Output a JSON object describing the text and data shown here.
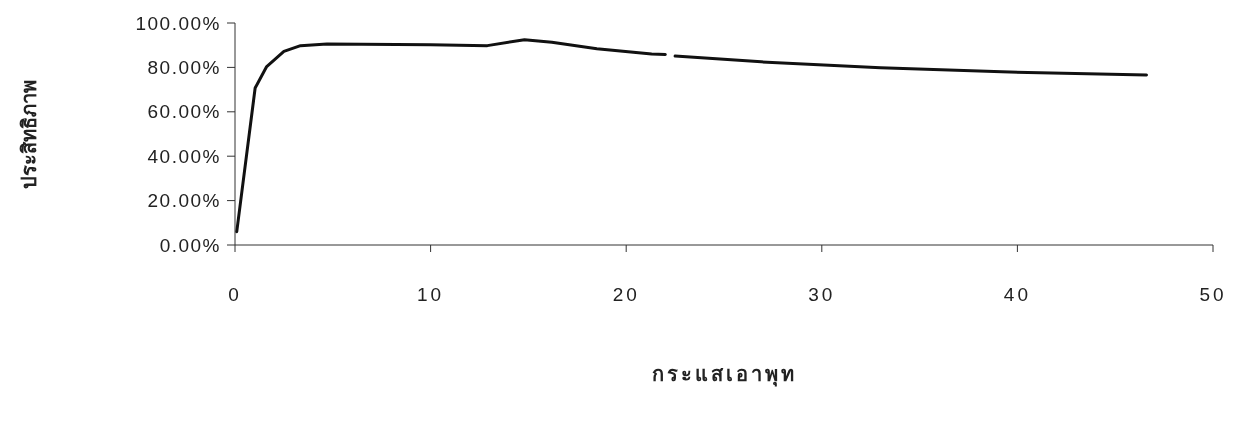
{
  "chart_data": {
    "type": "line",
    "xlabel": "กระแสเอาพุท",
    "ylabel": "ประสิทธิภาพ",
    "x": [
      0.09,
      1.03,
      1.62,
      2.5,
      3.35,
      4.7,
      10,
      12.9,
      14.8,
      16.2,
      18.5,
      21.3,
      22.0,
      22.2,
      22.5,
      26.9,
      33.0,
      39.2,
      46.6
    ],
    "series": [
      {
        "color": "#111111",
        "values": [
          6,
          70.7,
          80.4,
          87.2,
          89.8,
          90.5,
          90.2,
          89.8,
          92.5,
          91.3,
          88.4,
          86,
          85.8,
          null,
          85.1,
          82.5,
          79.8,
          78,
          76.6
        ]
      }
    ],
    "xlim": [
      0,
      50
    ],
    "xticks": [
      0,
      10,
      20,
      30,
      40,
      50
    ],
    "ylim": [
      0,
      100
    ],
    "yticks": [
      {
        "value": 0,
        "label": "0.00%"
      },
      {
        "value": 20,
        "label": "20.00%"
      },
      {
        "value": 40,
        "label": "40.00%"
      },
      {
        "value": 60,
        "label": "60.00%"
      },
      {
        "value": 80,
        "label": "80.00%"
      },
      {
        "value": 100,
        "label": "100.00%"
      }
    ],
    "grid": false,
    "marker": "none",
    "line_style": "solid"
  }
}
